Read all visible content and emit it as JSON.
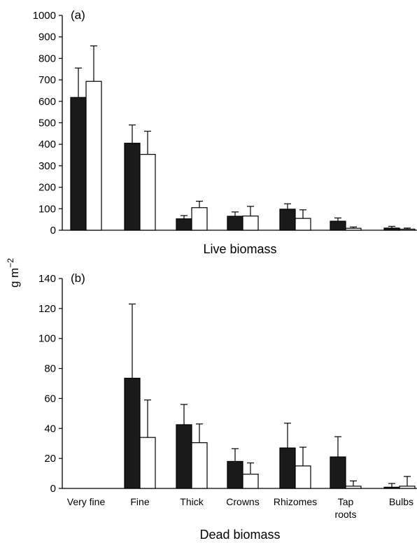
{
  "ylabel": "g m",
  "ylabel_exp": "−2",
  "colors": {
    "series_filled": "#1a1a1a",
    "series_open": "#ffffff",
    "axis": "#000000"
  },
  "chart_data": [
    {
      "type": "bar",
      "panel_label": "(a)",
      "xlabel": "Live biomass",
      "ylim": [
        0,
        1000
      ],
      "yticks": [
        0,
        100,
        200,
        300,
        400,
        500,
        600,
        700,
        800,
        900,
        1000
      ],
      "categories": [
        "Very fine",
        "Fine",
        "Thick",
        "Crowns",
        "Rhizomes",
        "Tap roots",
        "Bulbs"
      ],
      "show_category_labels": false,
      "series": [
        {
          "style": "filled",
          "values": [
            618,
            405,
            53,
            65,
            98,
            42,
            10
          ],
          "errors": [
            137,
            85,
            15,
            20,
            25,
            15,
            8
          ]
        },
        {
          "style": "open",
          "values": [
            693,
            353,
            105,
            66,
            55,
            9,
            5
          ],
          "errors": [
            165,
            108,
            30,
            45,
            40,
            6,
            5
          ]
        }
      ]
    },
    {
      "type": "bar",
      "panel_label": "(b)",
      "xlabel": "Dead biomass",
      "ylim": [
        0,
        140
      ],
      "yticks": [
        0,
        20,
        40,
        60,
        80,
        100,
        120,
        140
      ],
      "categories": [
        "Very fine",
        "Fine",
        "Thick",
        "Crowns",
        "Rhizomes",
        "Tap roots",
        "Bulbs"
      ],
      "show_category_labels": true,
      "series": [
        {
          "style": "filled",
          "values": [
            0,
            73.5,
            42.5,
            18,
            27,
            21,
            0.8
          ],
          "errors": [
            0,
            49.5,
            13.5,
            8.5,
            16.5,
            13.5,
            2.5
          ]
        },
        {
          "style": "open",
          "values": [
            0,
            34,
            30.5,
            9.5,
            15,
            1.5,
            1.5
          ],
          "errors": [
            0,
            25,
            12.5,
            7.5,
            12.5,
            3.5,
            6.5
          ]
        }
      ]
    }
  ]
}
